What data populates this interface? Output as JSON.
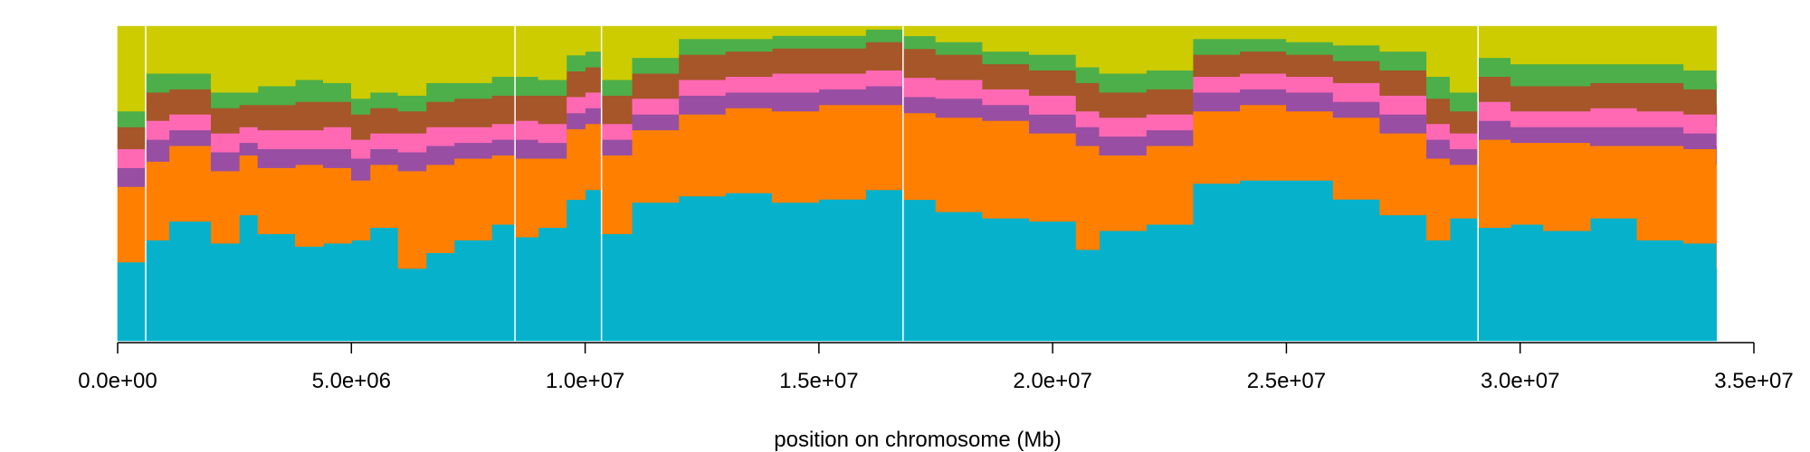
{
  "chart_data": {
    "type": "area",
    "stacked": true,
    "normalized": true,
    "xlabel": "position on chromosome (Mb)",
    "ylabel": "",
    "xlim": [
      0,
      35000000
    ],
    "ylim": [
      0,
      1
    ],
    "grid": false,
    "legend": "none",
    "x_ticks": [
      0,
      5000000,
      10000000,
      15000000,
      20000000,
      25000000,
      30000000,
      35000000
    ],
    "x_tick_labels": [
      "0.0e+00",
      "5.0e+06",
      "1.0e+07",
      "1.5e+07",
      "2.0e+07",
      "2.5e+07",
      "3.0e+07",
      "3.5e+07"
    ],
    "segment_breaks": [
      600000,
      8500000,
      10350000,
      16800000,
      29100000
    ],
    "x": [
      0,
      600000,
      1100000,
      2000000,
      2600000,
      3000000,
      3800000,
      4400000,
      5000000,
      5400000,
      6000000,
      6600000,
      7200000,
      8000000,
      8500000,
      9000000,
      9600000,
      10000000,
      10350000,
      11000000,
      12000000,
      13000000,
      14000000,
      15000000,
      16000000,
      16800000,
      17500000,
      18500000,
      19500000,
      20500000,
      21000000,
      22000000,
      23000000,
      24000000,
      25000000,
      26000000,
      27000000,
      28000000,
      28500000,
      29100000,
      29800000,
      30500000,
      31500000,
      32500000,
      33500000,
      34200000
    ],
    "series": [
      {
        "color": "#06B2CB",
        "values": [
          0.25,
          0.32,
          0.38,
          0.31,
          0.4,
          0.34,
          0.3,
          0.31,
          0.32,
          0.36,
          0.23,
          0.28,
          0.32,
          0.37,
          0.33,
          0.36,
          0.44,
          0.48,
          0.34,
          0.44,
          0.46,
          0.47,
          0.44,
          0.45,
          0.48,
          0.44,
          0.41,
          0.39,
          0.38,
          0.29,
          0.35,
          0.37,
          0.5,
          0.51,
          0.51,
          0.45,
          0.4,
          0.32,
          0.39,
          0.36,
          0.37,
          0.35,
          0.39,
          0.32,
          0.31,
          0.23
        ]
      },
      {
        "color": "#FF7F00",
        "values": [
          0.24,
          0.25,
          0.24,
          0.23,
          0.19,
          0.21,
          0.26,
          0.24,
          0.19,
          0.2,
          0.31,
          0.28,
          0.26,
          0.22,
          0.25,
          0.22,
          0.22,
          0.21,
          0.25,
          0.23,
          0.26,
          0.27,
          0.29,
          0.3,
          0.27,
          0.27,
          0.3,
          0.31,
          0.28,
          0.33,
          0.24,
          0.25,
          0.23,
          0.24,
          0.22,
          0.26,
          0.26,
          0.26,
          0.17,
          0.28,
          0.26,
          0.28,
          0.23,
          0.3,
          0.3,
          0.33
        ]
      },
      {
        "color": "#984EA3",
        "values": [
          0.06,
          0.07,
          0.05,
          0.06,
          0.04,
          0.06,
          0.05,
          0.06,
          0.07,
          0.05,
          0.06,
          0.06,
          0.05,
          0.05,
          0.06,
          0.05,
          0.05,
          0.05,
          0.05,
          0.05,
          0.06,
          0.05,
          0.06,
          0.05,
          0.06,
          0.05,
          0.06,
          0.05,
          0.06,
          0.06,
          0.06,
          0.05,
          0.06,
          0.05,
          0.06,
          0.05,
          0.06,
          0.06,
          0.05,
          0.06,
          0.05,
          0.05,
          0.06,
          0.06,
          0.05,
          0.06
        ]
      },
      {
        "color": "#FF69B4",
        "values": [
          0.06,
          0.06,
          0.05,
          0.06,
          0.05,
          0.06,
          0.06,
          0.07,
          0.06,
          0.05,
          0.06,
          0.06,
          0.05,
          0.05,
          0.06,
          0.06,
          0.05,
          0.05,
          0.05,
          0.05,
          0.05,
          0.05,
          0.06,
          0.05,
          0.05,
          0.06,
          0.06,
          0.05,
          0.06,
          0.05,
          0.06,
          0.05,
          0.05,
          0.05,
          0.05,
          0.06,
          0.06,
          0.05,
          0.05,
          0.06,
          0.05,
          0.05,
          0.06,
          0.05,
          0.06,
          0.06
        ]
      },
      {
        "color": "#A65628",
        "values": [
          0.07,
          0.09,
          0.08,
          0.08,
          0.07,
          0.08,
          0.09,
          0.08,
          0.08,
          0.08,
          0.07,
          0.08,
          0.09,
          0.09,
          0.08,
          0.09,
          0.08,
          0.08,
          0.09,
          0.08,
          0.08,
          0.08,
          0.08,
          0.08,
          0.09,
          0.09,
          0.08,
          0.08,
          0.08,
          0.09,
          0.08,
          0.08,
          0.07,
          0.07,
          0.07,
          0.07,
          0.08,
          0.08,
          0.07,
          0.08,
          0.08,
          0.08,
          0.08,
          0.09,
          0.08,
          0.07
        ]
      },
      {
        "color": "#4DAF4A",
        "values": [
          0.05,
          0.06,
          0.05,
          0.05,
          0.04,
          0.06,
          0.07,
          0.06,
          0.05,
          0.05,
          0.05,
          0.06,
          0.05,
          0.06,
          0.06,
          0.05,
          0.05,
          0.05,
          0.05,
          0.05,
          0.05,
          0.04,
          0.04,
          0.04,
          0.04,
          0.04,
          0.04,
          0.04,
          0.05,
          0.05,
          0.06,
          0.06,
          0.05,
          0.04,
          0.04,
          0.05,
          0.06,
          0.07,
          0.06,
          0.06,
          0.07,
          0.07,
          0.06,
          0.06,
          0.06,
          0.07
        ]
      },
      {
        "color": "#CCCC00",
        "values": [
          0.27,
          0.15,
          0.15,
          0.21,
          0.21,
          0.19,
          0.17,
          0.18,
          0.23,
          0.21,
          0.22,
          0.18,
          0.18,
          0.16,
          0.16,
          0.17,
          0.09,
          0.08,
          0.17,
          0.1,
          0.04,
          0.04,
          0.03,
          0.03,
          0.01,
          0.03,
          0.05,
          0.08,
          0.09,
          0.13,
          0.15,
          0.14,
          0.04,
          0.04,
          0.05,
          0.06,
          0.08,
          0.16,
          0.21,
          0.1,
          0.12,
          0.12,
          0.12,
          0.12,
          0.14,
          0.18
        ]
      }
    ]
  }
}
